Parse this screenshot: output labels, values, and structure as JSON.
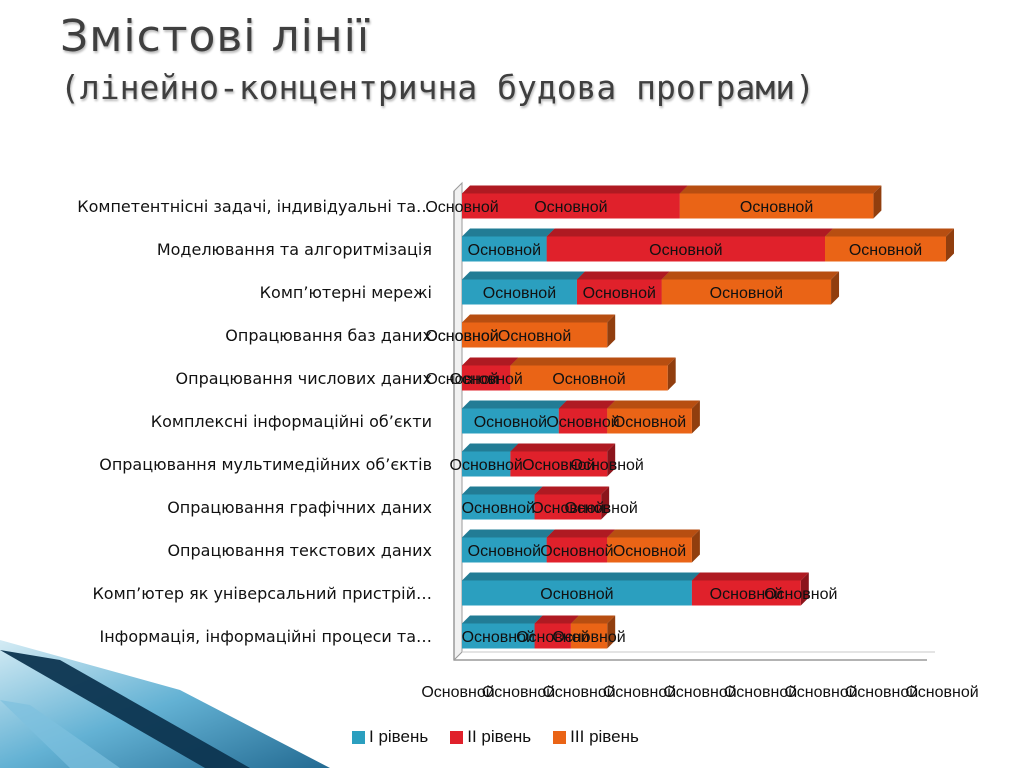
{
  "slide": {
    "title": "Змістові лінії",
    "subtitle": "(лінейно-концентрична будова програми)"
  },
  "legend": [
    {
      "label": "І рівень",
      "color": "#2b9fbf"
    },
    {
      "label": "ІІ рівень",
      "color": "#e0212b"
    },
    {
      "label": "ІІІ рівень",
      "color": "#ea6416"
    }
  ],
  "chart_data": {
    "type": "bar",
    "orientation": "horizontal",
    "stacked": true,
    "categories": [
      "Компетентнісні задачі, індивідуальні та…",
      "Моделювання та алгоритмізація",
      "Комп’ютерні мережі",
      "Опрацювання баз даних",
      "Опрацювання числових даних",
      "Комплексні інформаційні об’єкти",
      "Опрацювання мультимедійних об’єктів",
      "Опрацювання графічних даних",
      "Опрацювання текстових даних",
      "Комп’ютер як універсальний пристрій…",
      "Інформація, інформаційні процеси та…"
    ],
    "series": [
      {
        "name": "І рівень",
        "color": "#2b9fbf",
        "values": [
          0,
          14,
          19,
          0,
          0,
          16,
          8,
          12,
          14,
          38,
          12
        ]
      },
      {
        "name": "ІІ рівень",
        "color": "#e0212b",
        "values": [
          36,
          46,
          14,
          0,
          8,
          8,
          16,
          11,
          10,
          18,
          6
        ]
      },
      {
        "name": "ІІІ рівень",
        "color": "#ea6416",
        "values": [
          32,
          20,
          28,
          24,
          26,
          14,
          0,
          0,
          14,
          0,
          6
        ]
      }
    ],
    "data_label_text": "Основной",
    "xlim": [
      0,
      80
    ],
    "x_tick_count": 9,
    "x_tick_label_text": "Основной",
    "grid": false,
    "legend_position": "bottom"
  }
}
